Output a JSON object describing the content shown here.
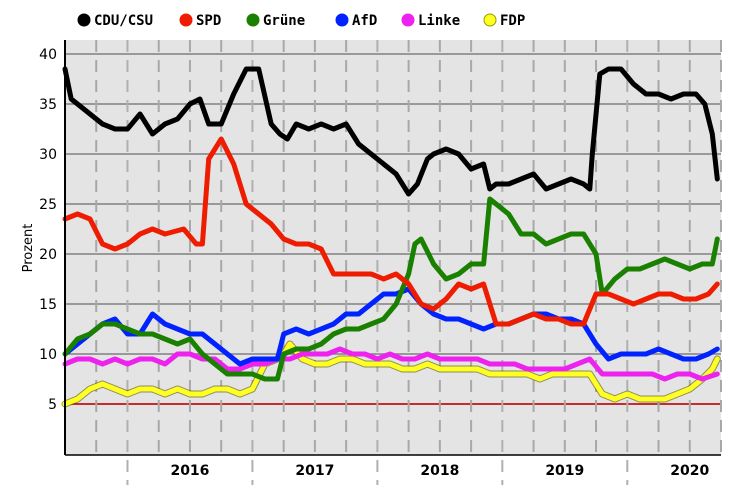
{
  "chart_data": {
    "type": "line",
    "ylabel": "Prozent",
    "ylim": [
      0,
      42
    ],
    "y_ticks": [
      "5",
      "10",
      "15",
      "20",
      "25",
      "30",
      "35",
      "40"
    ],
    "x_year_labels": [
      "2016",
      "2017",
      "2018",
      "2019",
      "2020"
    ],
    "xlim": [
      2015.5,
      2020.75
    ],
    "grid": true,
    "legend_position": "top",
    "reference_line": {
      "y": 5,
      "color": "#cc0000"
    },
    "series": [
      {
        "name": "CDU/CSU",
        "color": "#000000",
        "x": [
          2015.5,
          2015.55,
          2015.6,
          2015.7,
          2015.8,
          2015.9,
          2016.0,
          2016.1,
          2016.2,
          2016.3,
          2016.4,
          2016.5,
          2016.58,
          2016.65,
          2016.75,
          2016.85,
          2016.95,
          2017.05,
          2017.15,
          2017.22,
          2017.28,
          2017.35,
          2017.45,
          2017.55,
          2017.65,
          2017.75,
          2017.85,
          2017.95,
          2018.05,
          2018.15,
          2018.25,
          2018.32,
          2018.4,
          2018.45,
          2018.55,
          2018.65,
          2018.75,
          2018.85,
          2018.9,
          2018.95,
          2019.05,
          2019.15,
          2019.25,
          2019.35,
          2019.45,
          2019.55,
          2019.65,
          2019.7,
          2019.72,
          2019.78,
          2019.85,
          2019.95,
          2020.05,
          2020.15,
          2020.25,
          2020.35,
          2020.45,
          2020.55,
          2020.62,
          2020.68,
          2020.72
        ],
        "y": [
          38.5,
          35.5,
          35,
          34,
          33,
          32.5,
          32.5,
          34,
          32,
          33,
          33.5,
          35,
          35.5,
          33,
          33,
          36,
          38.5,
          38.5,
          33,
          32,
          31.5,
          33,
          32.5,
          33,
          32.5,
          33,
          31,
          30,
          29,
          28,
          26,
          27,
          29.5,
          30,
          30.5,
          30,
          28.5,
          29,
          26.5,
          27,
          27,
          27.5,
          28,
          26.5,
          27,
          27.5,
          27,
          26.5,
          30,
          38,
          38.5,
          38.5,
          37,
          36,
          36,
          35.5,
          36,
          36,
          35,
          32,
          27.5
        ]
      },
      {
        "name": "SPD",
        "color": "#ee1c00",
        "x": [
          2015.5,
          2015.6,
          2015.7,
          2015.8,
          2015.9,
          2016.0,
          2016.1,
          2016.2,
          2016.3,
          2016.45,
          2016.55,
          2016.6,
          2016.65,
          2016.75,
          2016.85,
          2016.95,
          2017.05,
          2017.15,
          2017.25,
          2017.35,
          2017.45,
          2017.55,
          2017.65,
          2017.75,
          2017.85,
          2017.95,
          2018.05,
          2018.15,
          2018.25,
          2018.35,
          2018.45,
          2018.55,
          2018.65,
          2018.75,
          2018.85,
          2018.95,
          2019.05,
          2019.15,
          2019.25,
          2019.35,
          2019.45,
          2019.55,
          2019.65,
          2019.75,
          2019.85,
          2019.95,
          2020.05,
          2020.15,
          2020.25,
          2020.35,
          2020.45,
          2020.55,
          2020.65,
          2020.72
        ],
        "y": [
          23.5,
          24,
          23.5,
          21,
          20.5,
          21,
          22,
          22.5,
          22,
          22.5,
          21,
          21,
          29.5,
          31.5,
          29,
          25,
          24,
          23,
          21.5,
          21,
          21,
          20.5,
          18,
          18,
          18,
          18,
          17.5,
          18,
          17,
          15,
          14.5,
          15.5,
          17,
          16.5,
          17,
          13,
          13,
          13.5,
          14,
          13.5,
          13.5,
          13,
          13,
          16,
          16,
          15.5,
          15,
          15.5,
          16,
          16,
          15.5,
          15.5,
          16,
          17
        ]
      },
      {
        "name": "Grüne",
        "color": "#1a8000",
        "x": [
          2015.5,
          2015.6,
          2015.7,
          2015.8,
          2015.9,
          2016.0,
          2016.1,
          2016.2,
          2016.3,
          2016.4,
          2016.5,
          2016.6,
          2016.7,
          2016.8,
          2016.9,
          2017.0,
          2017.1,
          2017.2,
          2017.25,
          2017.35,
          2017.45,
          2017.55,
          2017.65,
          2017.75,
          2017.85,
          2017.95,
          2018.05,
          2018.15,
          2018.25,
          2018.3,
          2018.35,
          2018.45,
          2018.55,
          2018.65,
          2018.75,
          2018.85,
          2018.9,
          2018.95,
          2019.05,
          2019.15,
          2019.25,
          2019.35,
          2019.45,
          2019.55,
          2019.65,
          2019.75,
          2019.8,
          2019.9,
          2020.0,
          2020.1,
          2020.2,
          2020.3,
          2020.4,
          2020.5,
          2020.6,
          2020.68,
          2020.72
        ],
        "y": [
          10,
          11.5,
          12,
          13,
          13,
          12.5,
          12,
          12,
          11.5,
          11,
          11.5,
          10,
          9,
          8,
          8,
          8,
          7.5,
          7.5,
          10,
          10.5,
          10.5,
          11,
          12,
          12.5,
          12.5,
          13,
          13.5,
          15,
          18,
          21,
          21.5,
          19,
          17.5,
          18,
          19,
          19,
          25.5,
          25,
          24,
          22,
          22,
          21,
          21.5,
          22,
          22,
          20,
          16,
          17.5,
          18.5,
          18.5,
          19,
          19.5,
          19,
          18.5,
          19,
          19,
          21.5
        ]
      },
      {
        "name": "AfD",
        "color": "#0022ff",
        "x": [
          2015.5,
          2015.6,
          2015.7,
          2015.8,
          2015.9,
          2016.0,
          2016.1,
          2016.2,
          2016.3,
          2016.4,
          2016.5,
          2016.6,
          2016.7,
          2016.8,
          2016.9,
          2017.0,
          2017.1,
          2017.2,
          2017.25,
          2017.35,
          2017.45,
          2017.55,
          2017.65,
          2017.75,
          2017.85,
          2017.95,
          2018.05,
          2018.15,
          2018.25,
          2018.35,
          2018.45,
          2018.55,
          2018.65,
          2018.75,
          2018.85,
          2018.95,
          2019.05,
          2019.15,
          2019.25,
          2019.35,
          2019.45,
          2019.55,
          2019.65,
          2019.75,
          2019.85,
          2019.95,
          2020.05,
          2020.15,
          2020.25,
          2020.35,
          2020.45,
          2020.55,
          2020.65,
          2020.72
        ],
        "y": [
          10,
          11,
          12,
          13,
          13.5,
          12,
          12,
          14,
          13,
          12.5,
          12,
          12,
          11,
          10,
          9,
          9.5,
          9.5,
          9.5,
          12,
          12.5,
          12,
          12.5,
          13,
          14,
          14,
          15,
          16,
          16,
          16.5,
          15,
          14,
          13.5,
          13.5,
          13,
          12.5,
          13,
          13,
          13.5,
          14,
          14,
          13.5,
          13.5,
          13,
          11,
          9.5,
          10,
          10,
          10,
          10.5,
          10,
          9.5,
          9.5,
          10,
          10.5
        ]
      },
      {
        "name": "Linke",
        "color": "#ee22ee",
        "x": [
          2015.5,
          2015.6,
          2015.7,
          2015.8,
          2015.9,
          2016.0,
          2016.1,
          2016.2,
          2016.3,
          2016.4,
          2016.5,
          2016.6,
          2016.7,
          2016.8,
          2016.9,
          2017.0,
          2017.1,
          2017.2,
          2017.3,
          2017.4,
          2017.5,
          2017.6,
          2017.7,
          2017.8,
          2017.9,
          2018.0,
          2018.1,
          2018.2,
          2018.3,
          2018.4,
          2018.5,
          2018.6,
          2018.7,
          2018.8,
          2018.9,
          2019.0,
          2019.1,
          2019.2,
          2019.3,
          2019.4,
          2019.5,
          2019.6,
          2019.7,
          2019.8,
          2019.9,
          2020.0,
          2020.1,
          2020.2,
          2020.3,
          2020.4,
          2020.5,
          2020.6,
          2020.72
        ],
        "y": [
          9,
          9.5,
          9.5,
          9,
          9.5,
          9,
          9.5,
          9.5,
          9,
          10,
          10,
          9.5,
          9.5,
          8.5,
          8.5,
          9,
          9,
          9.5,
          9.5,
          10,
          10,
          10,
          10.5,
          10,
          10,
          9.5,
          10,
          9.5,
          9.5,
          10,
          9.5,
          9.5,
          9.5,
          9.5,
          9,
          9,
          9,
          8.5,
          8.5,
          8.5,
          8.5,
          9,
          9.5,
          8,
          8,
          8,
          8,
          8,
          7.5,
          8,
          8,
          7.5,
          8
        ]
      },
      {
        "name": "FDP",
        "color": "#ffff22",
        "x": [
          2015.5,
          2015.6,
          2015.7,
          2015.8,
          2015.9,
          2016.0,
          2016.1,
          2016.2,
          2016.3,
          2016.4,
          2016.5,
          2016.6,
          2016.7,
          2016.8,
          2016.9,
          2017.0,
          2017.1,
          2017.2,
          2017.25,
          2017.3,
          2017.4,
          2017.5,
          2017.6,
          2017.7,
          2017.8,
          2017.9,
          2018.0,
          2018.1,
          2018.2,
          2018.3,
          2018.4,
          2018.5,
          2018.6,
          2018.7,
          2018.8,
          2018.9,
          2019.0,
          2019.1,
          2019.2,
          2019.3,
          2019.4,
          2019.5,
          2019.6,
          2019.7,
          2019.75,
          2019.8,
          2019.9,
          2020.0,
          2020.1,
          2020.2,
          2020.3,
          2020.4,
          2020.5,
          2020.6,
          2020.68,
          2020.72
        ],
        "y": [
          5,
          5.5,
          6.5,
          7,
          6.5,
          6,
          6.5,
          6.5,
          6,
          6.5,
          6,
          6,
          6.5,
          6.5,
          6,
          6.5,
          9,
          9.5,
          10,
          11,
          9.5,
          9,
          9,
          9.5,
          9.5,
          9,
          9,
          9,
          8.5,
          8.5,
          9,
          8.5,
          8.5,
          8.5,
          8.5,
          8,
          8,
          8,
          8,
          7.5,
          8,
          8,
          8,
          8,
          7,
          6,
          5.5,
          6,
          5.5,
          5.5,
          5.5,
          6,
          6.5,
          7.5,
          8.5,
          9.5
        ]
      }
    ]
  }
}
